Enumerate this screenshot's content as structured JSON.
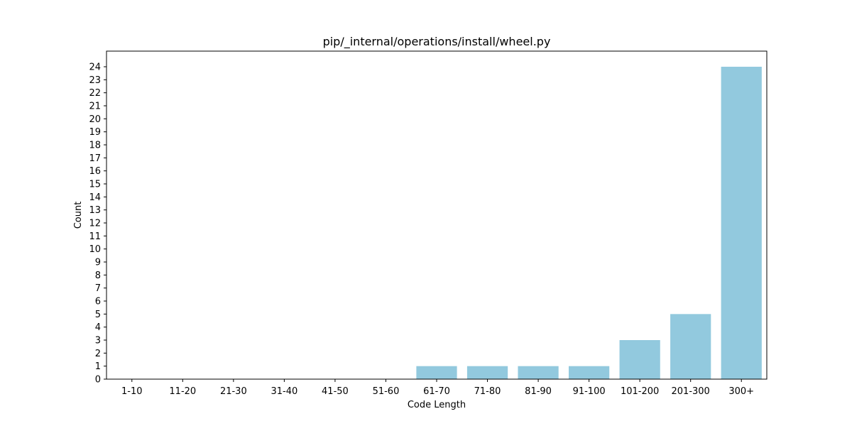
{
  "chart_data": {
    "type": "bar",
    "title": "pip/_internal/operations/install/wheel.py",
    "xlabel": "Code Length",
    "ylabel": "Count",
    "categories": [
      "1-10",
      "11-20",
      "21-30",
      "31-40",
      "41-50",
      "51-60",
      "61-70",
      "71-80",
      "81-90",
      "91-100",
      "101-200",
      "201-300",
      "300+"
    ],
    "values": [
      0,
      0,
      0,
      0,
      0,
      0,
      1,
      1,
      1,
      1,
      3,
      5,
      24
    ],
    "ylim": [
      0,
      25.2
    ],
    "yticks": [
      0,
      1,
      2,
      3,
      4,
      5,
      6,
      7,
      8,
      9,
      10,
      11,
      12,
      13,
      14,
      15,
      16,
      17,
      18,
      19,
      20,
      21,
      22,
      23,
      24
    ],
    "bar_color": "#92c9de",
    "grid": false,
    "legend": "none"
  }
}
